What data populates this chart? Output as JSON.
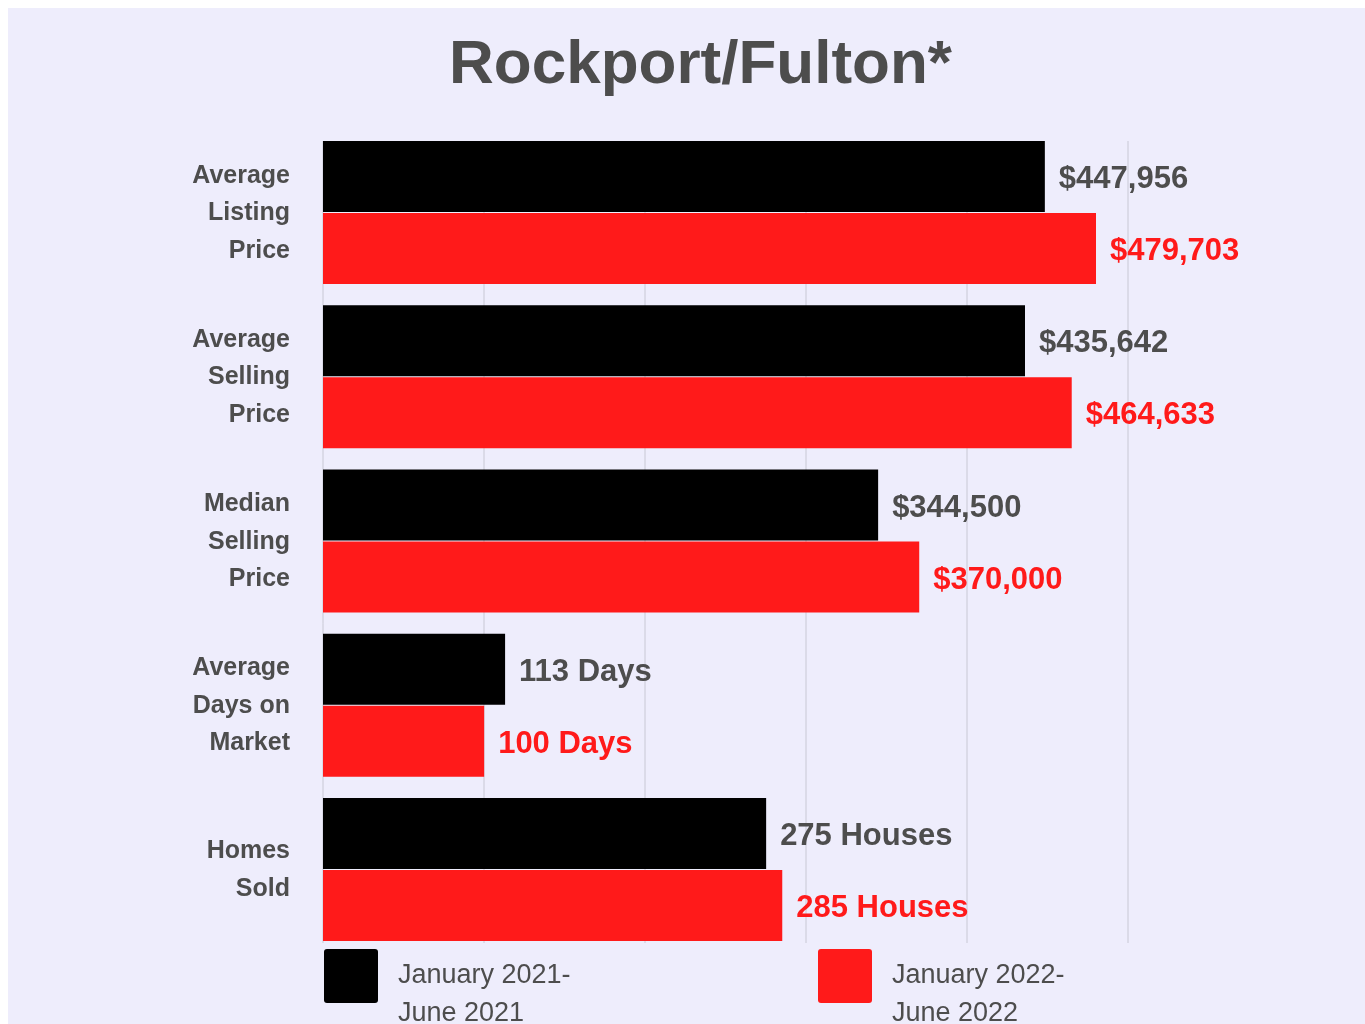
{
  "chart_data": [
    {
      "type": "bar",
      "orientation": "horizontal",
      "title": "Rockport/Fulton*",
      "categories": [
        "Average Listing Price",
        "Average Selling Price",
        "Median Selling Price"
      ],
      "series": [
        {
          "name": "January 2021- June 2021",
          "color": "#000000",
          "values": [
            447956,
            435642,
            344500
          ],
          "value_labels": [
            "$447,956",
            "$435,642",
            "$344,500"
          ]
        },
        {
          "name": "January 2022- June 2022",
          "color": "#ff1a1a",
          "values": [
            479703,
            464633,
            370000
          ],
          "value_labels": [
            "$479,703",
            "$464,633",
            "$370,000"
          ]
        }
      ],
      "grid": "x",
      "legend": "bottom"
    },
    {
      "type": "bar",
      "orientation": "horizontal",
      "categories": [
        "Average Days on Market"
      ],
      "series": [
        {
          "color": "#000000",
          "values": [
            113
          ],
          "value_labels": [
            "113 Days"
          ]
        },
        {
          "color": "#ff1a1a",
          "values": [
            100
          ],
          "value_labels": [
            "100 Days"
          ]
        }
      ]
    },
    {
      "type": "bar",
      "orientation": "horizontal",
      "categories": [
        "Homes Sold"
      ],
      "series": [
        {
          "color": "#000000",
          "values": [
            275
          ],
          "value_labels": [
            "275 Houses"
          ]
        },
        {
          "color": "#ff1a1a",
          "values": [
            285
          ],
          "value_labels": [
            "285 Houses"
          ]
        }
      ]
    }
  ]
}
